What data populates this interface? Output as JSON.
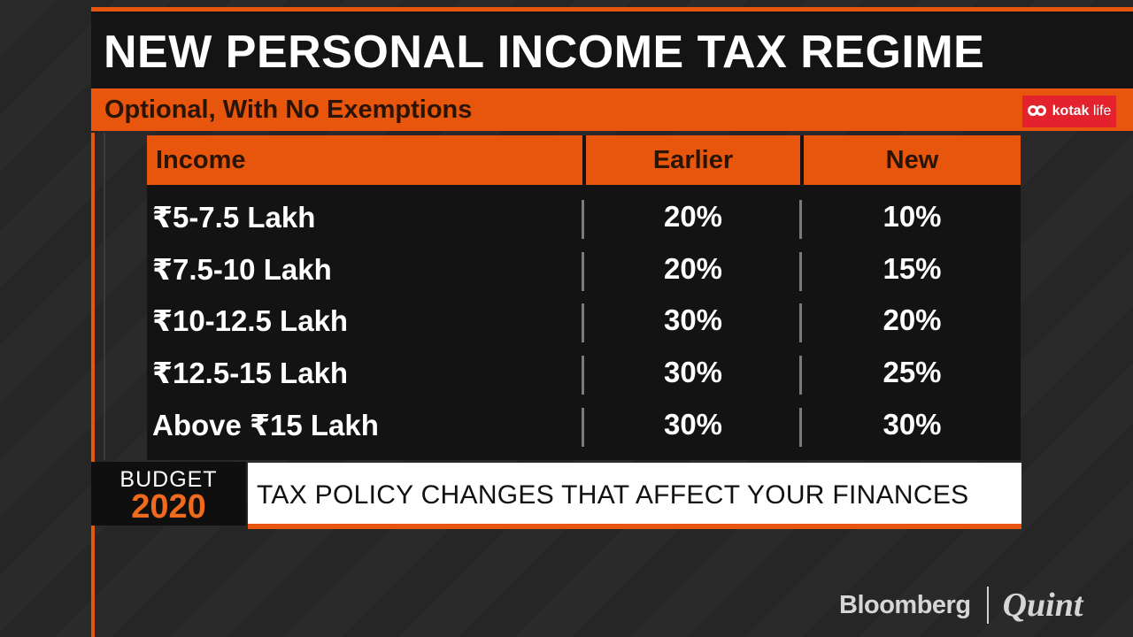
{
  "title": "NEW PERSONAL INCOME TAX REGIME",
  "subtitle": "Optional, With No Exemptions",
  "sponsor": {
    "mark": "kotak-infinity-logo",
    "name_bold": "kotak",
    "name_light": " life",
    "bg_color": "#e3222d"
  },
  "table": {
    "headers": {
      "income": "Income",
      "earlier": "Earlier",
      "new": "New"
    },
    "rows": [
      {
        "income": "₹5-7.5 Lakh",
        "earlier": "20%",
        "new": "10%"
      },
      {
        "income": "₹7.5-10 Lakh",
        "earlier": "20%",
        "new": "15%"
      },
      {
        "income": "₹10-12.5 Lakh",
        "earlier": "30%",
        "new": "20%"
      },
      {
        "income": "₹12.5-15 Lakh",
        "earlier": "30%",
        "new": "25%"
      },
      {
        "income": "Above ₹15 Lakh",
        "earlier": "30%",
        "new": "30%"
      }
    ]
  },
  "budget": {
    "word": "BUDGET",
    "year": "2020"
  },
  "ticker": "TAX POLICY CHANGES THAT AFFECT YOUR FINANCES",
  "brand": {
    "left": "Bloomberg",
    "right": "Quint"
  },
  "colors": {
    "accent": "#e8560d",
    "title_bg": "#141414",
    "table_bg": "#131313",
    "year": "#f06a1d"
  }
}
